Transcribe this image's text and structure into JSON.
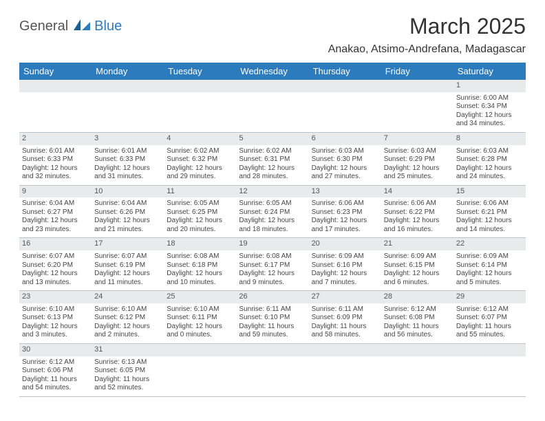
{
  "logo": {
    "part1": "General",
    "part2": "Blue"
  },
  "title": "March 2025",
  "location": "Anakao, Atsimo-Andrefana, Madagascar",
  "colors": {
    "header_bg": "#2b7bbd",
    "header_text": "#ffffff",
    "daynum_bg": "#e8eaec",
    "border": "#b9c3cb",
    "accent_border": "#2b7bbd",
    "text": "#444444",
    "page_bg": "#ffffff"
  },
  "typography": {
    "title_fontsize": 32,
    "location_fontsize": 16,
    "header_fontsize": 13,
    "daynum_fontsize": 11,
    "cell_fontsize": 10
  },
  "columns": [
    "Sunday",
    "Monday",
    "Tuesday",
    "Wednesday",
    "Thursday",
    "Friday",
    "Saturday"
  ],
  "weeks": [
    [
      null,
      null,
      null,
      null,
      null,
      null,
      {
        "n": "1",
        "sr": "Sunrise: 6:00 AM",
        "ss": "Sunset: 6:34 PM",
        "d1": "Daylight: 12 hours",
        "d2": "and 34 minutes."
      }
    ],
    [
      {
        "n": "2",
        "sr": "Sunrise: 6:01 AM",
        "ss": "Sunset: 6:33 PM",
        "d1": "Daylight: 12 hours",
        "d2": "and 32 minutes."
      },
      {
        "n": "3",
        "sr": "Sunrise: 6:01 AM",
        "ss": "Sunset: 6:33 PM",
        "d1": "Daylight: 12 hours",
        "d2": "and 31 minutes."
      },
      {
        "n": "4",
        "sr": "Sunrise: 6:02 AM",
        "ss": "Sunset: 6:32 PM",
        "d1": "Daylight: 12 hours",
        "d2": "and 29 minutes."
      },
      {
        "n": "5",
        "sr": "Sunrise: 6:02 AM",
        "ss": "Sunset: 6:31 PM",
        "d1": "Daylight: 12 hours",
        "d2": "and 28 minutes."
      },
      {
        "n": "6",
        "sr": "Sunrise: 6:03 AM",
        "ss": "Sunset: 6:30 PM",
        "d1": "Daylight: 12 hours",
        "d2": "and 27 minutes."
      },
      {
        "n": "7",
        "sr": "Sunrise: 6:03 AM",
        "ss": "Sunset: 6:29 PM",
        "d1": "Daylight: 12 hours",
        "d2": "and 25 minutes."
      },
      {
        "n": "8",
        "sr": "Sunrise: 6:03 AM",
        "ss": "Sunset: 6:28 PM",
        "d1": "Daylight: 12 hours",
        "d2": "and 24 minutes."
      }
    ],
    [
      {
        "n": "9",
        "sr": "Sunrise: 6:04 AM",
        "ss": "Sunset: 6:27 PM",
        "d1": "Daylight: 12 hours",
        "d2": "and 23 minutes."
      },
      {
        "n": "10",
        "sr": "Sunrise: 6:04 AM",
        "ss": "Sunset: 6:26 PM",
        "d1": "Daylight: 12 hours",
        "d2": "and 21 minutes."
      },
      {
        "n": "11",
        "sr": "Sunrise: 6:05 AM",
        "ss": "Sunset: 6:25 PM",
        "d1": "Daylight: 12 hours",
        "d2": "and 20 minutes."
      },
      {
        "n": "12",
        "sr": "Sunrise: 6:05 AM",
        "ss": "Sunset: 6:24 PM",
        "d1": "Daylight: 12 hours",
        "d2": "and 18 minutes."
      },
      {
        "n": "13",
        "sr": "Sunrise: 6:06 AM",
        "ss": "Sunset: 6:23 PM",
        "d1": "Daylight: 12 hours",
        "d2": "and 17 minutes."
      },
      {
        "n": "14",
        "sr": "Sunrise: 6:06 AM",
        "ss": "Sunset: 6:22 PM",
        "d1": "Daylight: 12 hours",
        "d2": "and 16 minutes."
      },
      {
        "n": "15",
        "sr": "Sunrise: 6:06 AM",
        "ss": "Sunset: 6:21 PM",
        "d1": "Daylight: 12 hours",
        "d2": "and 14 minutes."
      }
    ],
    [
      {
        "n": "16",
        "sr": "Sunrise: 6:07 AM",
        "ss": "Sunset: 6:20 PM",
        "d1": "Daylight: 12 hours",
        "d2": "and 13 minutes."
      },
      {
        "n": "17",
        "sr": "Sunrise: 6:07 AM",
        "ss": "Sunset: 6:19 PM",
        "d1": "Daylight: 12 hours",
        "d2": "and 11 minutes."
      },
      {
        "n": "18",
        "sr": "Sunrise: 6:08 AM",
        "ss": "Sunset: 6:18 PM",
        "d1": "Daylight: 12 hours",
        "d2": "and 10 minutes."
      },
      {
        "n": "19",
        "sr": "Sunrise: 6:08 AM",
        "ss": "Sunset: 6:17 PM",
        "d1": "Daylight: 12 hours",
        "d2": "and 9 minutes."
      },
      {
        "n": "20",
        "sr": "Sunrise: 6:09 AM",
        "ss": "Sunset: 6:16 PM",
        "d1": "Daylight: 12 hours",
        "d2": "and 7 minutes."
      },
      {
        "n": "21",
        "sr": "Sunrise: 6:09 AM",
        "ss": "Sunset: 6:15 PM",
        "d1": "Daylight: 12 hours",
        "d2": "and 6 minutes."
      },
      {
        "n": "22",
        "sr": "Sunrise: 6:09 AM",
        "ss": "Sunset: 6:14 PM",
        "d1": "Daylight: 12 hours",
        "d2": "and 5 minutes."
      }
    ],
    [
      {
        "n": "23",
        "sr": "Sunrise: 6:10 AM",
        "ss": "Sunset: 6:13 PM",
        "d1": "Daylight: 12 hours",
        "d2": "and 3 minutes."
      },
      {
        "n": "24",
        "sr": "Sunrise: 6:10 AM",
        "ss": "Sunset: 6:12 PM",
        "d1": "Daylight: 12 hours",
        "d2": "and 2 minutes."
      },
      {
        "n": "25",
        "sr": "Sunrise: 6:10 AM",
        "ss": "Sunset: 6:11 PM",
        "d1": "Daylight: 12 hours",
        "d2": "and 0 minutes."
      },
      {
        "n": "26",
        "sr": "Sunrise: 6:11 AM",
        "ss": "Sunset: 6:10 PM",
        "d1": "Daylight: 11 hours",
        "d2": "and 59 minutes."
      },
      {
        "n": "27",
        "sr": "Sunrise: 6:11 AM",
        "ss": "Sunset: 6:09 PM",
        "d1": "Daylight: 11 hours",
        "d2": "and 58 minutes."
      },
      {
        "n": "28",
        "sr": "Sunrise: 6:12 AM",
        "ss": "Sunset: 6:08 PM",
        "d1": "Daylight: 11 hours",
        "d2": "and 56 minutes."
      },
      {
        "n": "29",
        "sr": "Sunrise: 6:12 AM",
        "ss": "Sunset: 6:07 PM",
        "d1": "Daylight: 11 hours",
        "d2": "and 55 minutes."
      }
    ],
    [
      {
        "n": "30",
        "sr": "Sunrise: 6:12 AM",
        "ss": "Sunset: 6:06 PM",
        "d1": "Daylight: 11 hours",
        "d2": "and 54 minutes."
      },
      {
        "n": "31",
        "sr": "Sunrise: 6:13 AM",
        "ss": "Sunset: 6:05 PM",
        "d1": "Daylight: 11 hours",
        "d2": "and 52 minutes."
      },
      null,
      null,
      null,
      null,
      null
    ]
  ]
}
